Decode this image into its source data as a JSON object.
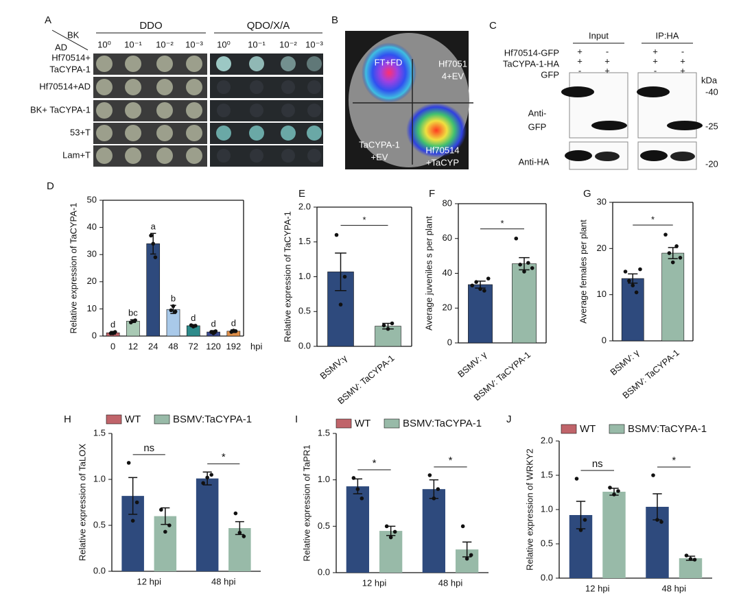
{
  "panel_a": {
    "letter": "A",
    "corner_top": "BK",
    "corner_bottom": "AD",
    "media": [
      "DDO",
      "QDO/X/A"
    ],
    "dilutions": [
      "10⁰",
      "10⁻¹",
      "10⁻²",
      "10⁻³"
    ],
    "rows": [
      [
        "Hf70514+",
        "TaCYPA-1"
      ],
      [
        "Hf70514+AD"
      ],
      [
        "BK+ TaCYPA-1"
      ],
      [
        "53+T"
      ],
      [
        "Lam+T"
      ]
    ]
  },
  "panel_b": {
    "letter": "B",
    "labels": [
      [
        "FT+FD"
      ],
      [
        "Hf7051",
        "4+EV"
      ],
      [
        "TaCYPA-1",
        "+EV"
      ],
      [
        "Hf70514",
        "+TaCYP"
      ]
    ]
  },
  "panel_c": {
    "letter": "C",
    "groups": [
      "Input",
      "IP:HA"
    ],
    "rows": [
      "Hf70514-GFP",
      "TaCYPA-1-HA",
      "GFP"
    ],
    "signs": [
      [
        "+",
        "-",
        "+",
        "-"
      ],
      [
        "+",
        "+",
        "+",
        "+"
      ],
      [
        "-",
        "+",
        "-",
        "+"
      ]
    ],
    "kda": "kDa",
    "markers": [
      "-40",
      "-25",
      "-20"
    ],
    "anti_gfp": [
      "Anti-",
      "GFP"
    ],
    "anti_ha": "Anti-HA"
  },
  "chart_data": [
    {
      "panel": "D",
      "type": "bar",
      "frame": "box",
      "y_label": "Relative expression of TaCYPA-1",
      "x_unit": "hpi",
      "categories": [
        "0",
        "12",
        "24",
        "48",
        "72",
        "120",
        "192"
      ],
      "values": [
        1.2,
        5.5,
        34,
        9.8,
        3.8,
        1.5,
        1.8
      ],
      "errors": [
        0.5,
        0.5,
        3.8,
        1.5,
        0.4,
        0.5,
        0.5
      ],
      "points": [
        [
          1,
          1,
          1.5
        ],
        [
          5,
          5.5,
          5.8
        ],
        [
          37,
          34,
          29
        ],
        [
          9.5,
          11,
          9
        ],
        [
          4,
          3.5,
          3.8
        ],
        [
          1.5,
          1,
          1.8
        ],
        [
          1.5,
          2,
          1.8
        ]
      ],
      "letters": [
        "d",
        "bc",
        "a",
        "b",
        "d",
        "d",
        "d"
      ],
      "colors": [
        "#c0646a",
        "#a9c9b4",
        "#2e4a7d",
        "#a9c9e9",
        "#2e8b8b",
        "#3a4a90",
        "#e0904a"
      ],
      "ylim": [
        0,
        50
      ],
      "yticks": [
        0,
        10,
        20,
        30,
        40,
        50
      ]
    },
    {
      "panel": "E",
      "type": "bar",
      "frame": "box",
      "y_label": "Relative expression of TaCYPA-1",
      "categories": [
        "BSMV:γ",
        "BSMV: TaCYPA-1"
      ],
      "values": [
        1.07,
        0.29
      ],
      "errors": [
        0.27,
        0.04
      ],
      "points": [
        [
          1.6,
          0.6,
          1.0
        ],
        [
          0.3,
          0.25,
          0.33
        ]
      ],
      "significance": "*",
      "colors": [
        "#2e4a7d",
        "#98baa8"
      ],
      "ylim": [
        0,
        2
      ],
      "yticks": [
        {
          "value": 0,
          "label": "0.0"
        },
        0.5,
        {
          "value": 1,
          "label": "1.0"
        },
        1.5,
        {
          "value": 2,
          "label": "2.0"
        }
      ]
    },
    {
      "panel": "F",
      "type": "bar",
      "frame": "box",
      "y_label": "Average juveniles s per plant",
      "categories": [
        "BSMV: γ",
        "BSMV: TaCYPA-1"
      ],
      "values": [
        33.5,
        45.5
      ],
      "errors": [
        2,
        3.5
      ],
      "points": [
        [
          33,
          35,
          31,
          30,
          37
        ],
        [
          60,
          45,
          41,
          46,
          43
        ]
      ],
      "significance": "*",
      "colors": [
        "#2e4a7d",
        "#98baa8"
      ],
      "ylim": [
        0,
        80
      ],
      "yticks": [
        0,
        20,
        40,
        60,
        80
      ]
    },
    {
      "panel": "G",
      "type": "bar",
      "frame": "box",
      "y_label": "Average females per plant",
      "categories": [
        "BSMV: γ",
        "BSMV: TaCYPA-1"
      ],
      "values": [
        13.5,
        19
      ],
      "errors": [
        1,
        1.2
      ],
      "points": [
        [
          15,
          13,
          12,
          10.5,
          15.5
        ],
        [
          23,
          19,
          17,
          20.5,
          18
        ]
      ],
      "significance": "*",
      "colors": [
        "#2e4a7d",
        "#98baa8"
      ],
      "ylim": [
        0,
        30
      ],
      "yticks": [
        0,
        10,
        20,
        30
      ]
    },
    {
      "panel": "H",
      "type": "grouped_bar",
      "frame": "open",
      "y_label": "Relative expression of TaLOX",
      "categories": [
        "12 hpi",
        "48 hpi"
      ],
      "significance": [
        "ns",
        "*"
      ],
      "series": [
        {
          "name": "WT",
          "color": "#2e4a7d",
          "legend_color": "#c0646a",
          "values": [
            0.82,
            1.01
          ],
          "errors": [
            0.2,
            0.07
          ],
          "points": [
            [
              1.18,
              0.55,
              0.75
            ],
            [
              0.96,
              1.02,
              1.05
            ]
          ]
        },
        {
          "name": "BSMV:TaCYPA-1",
          "color": "#98baa8",
          "legend_color": "#98baa8",
          "values": [
            0.6,
            0.47
          ],
          "errors": [
            0.09,
            0.07
          ],
          "points": [
            [
              0.67,
              0.43,
              0.5
            ],
            [
              0.63,
              0.42,
              0.38
            ]
          ]
        }
      ],
      "ylim": [
        0,
        1.5
      ],
      "yticks": [
        {
          "value": 0,
          "label": "0.0"
        },
        0.5,
        {
          "value": 1,
          "label": "1.0"
        },
        1.5
      ]
    },
    {
      "panel": "I",
      "type": "grouped_bar",
      "frame": "open",
      "y_label": "Relative expression of TaPR1",
      "categories": [
        "12 hpi",
        "48 hpi"
      ],
      "significance": [
        "*",
        "*"
      ],
      "series": [
        {
          "name": "WT",
          "color": "#2e4a7d",
          "legend_color": "#c0646a",
          "values": [
            0.93,
            0.9
          ],
          "errors": [
            0.08,
            0.1
          ],
          "points": [
            [
              1.02,
              0.9,
              0.8
            ],
            [
              1.05,
              0.8,
              0.9
            ]
          ]
        },
        {
          "name": "BSMV:TaCYPA-1",
          "color": "#98baa8",
          "legend_color": "#98baa8",
          "values": [
            0.45,
            0.25
          ],
          "errors": [
            0.05,
            0.08
          ],
          "points": [
            [
              0.5,
              0.38,
              0.44
            ],
            [
              0.5,
              0.15,
              0.19
            ]
          ]
        }
      ],
      "ylim": [
        0,
        1.5
      ],
      "yticks": [
        {
          "value": 0,
          "label": "0.0"
        },
        0.5,
        {
          "value": 1,
          "label": "1.0"
        },
        1.5
      ]
    },
    {
      "panel": "J",
      "type": "grouped_bar",
      "frame": "open",
      "y_label": "Relative expression of WRKY2",
      "categories": [
        "12 hpi",
        "48 hpi"
      ],
      "significance": [
        "ns",
        "*"
      ],
      "series": [
        {
          "name": "WT",
          "color": "#2e4a7d",
          "legend_color": "#c0646a",
          "values": [
            0.92,
            1.04
          ],
          "errors": [
            0.2,
            0.19
          ],
          "points": [
            [
              1.45,
              0.7,
              0.85
            ],
            [
              1.5,
              0.85,
              0.82
            ]
          ]
        },
        {
          "name": "BSMV:TaCYPA-1",
          "color": "#98baa8",
          "legend_color": "#98baa8",
          "values": [
            1.26,
            0.29
          ],
          "errors": [
            0.05,
            0.03
          ],
          "points": [
            [
              1.32,
              1.22,
              1.27
            ],
            [
              0.33,
              0.28,
              0.27
            ]
          ]
        }
      ],
      "ylim": [
        0,
        2
      ],
      "yticks": [
        {
          "value": 0,
          "label": "0.0"
        },
        0.5,
        {
          "value": 1,
          "label": "1.0"
        },
        1.5,
        {
          "value": 2,
          "label": "2.0"
        }
      ]
    }
  ]
}
